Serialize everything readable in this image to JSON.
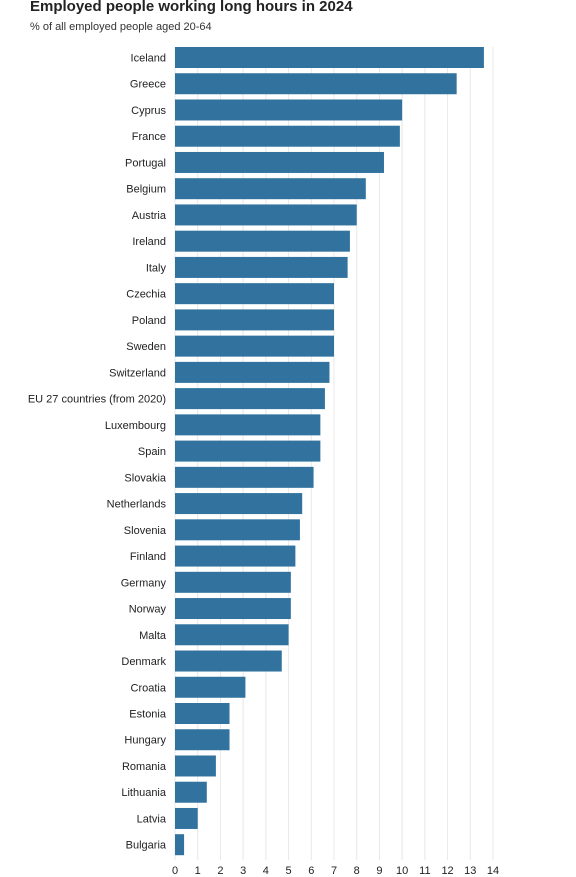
{
  "chart_data": {
    "type": "bar",
    "orientation": "horizontal",
    "title": "Employed people working long hours in 2024",
    "subtitle": "% of all employed people aged 20-64",
    "categories": [
      "Iceland",
      "Greece",
      "Cyprus",
      "France",
      "Portugal",
      "Belgium",
      "Austria",
      "Ireland",
      "Italy",
      "Czechia",
      "Poland",
      "Sweden",
      "Switzerland",
      "EU 27 countries (from 2020)",
      "Luxembourg",
      "Spain",
      "Slovakia",
      "Netherlands",
      "Slovenia",
      "Finland",
      "Germany",
      "Norway",
      "Malta",
      "Denmark",
      "Croatia",
      "Estonia",
      "Hungary",
      "Romania",
      "Lithuania",
      "Latvia",
      "Bulgaria"
    ],
    "values": [
      13.6,
      12.4,
      10.0,
      9.9,
      9.2,
      8.4,
      8.0,
      7.7,
      7.6,
      7.0,
      7.0,
      7.0,
      6.8,
      6.6,
      6.4,
      6.4,
      6.1,
      5.6,
      5.5,
      5.3,
      5.1,
      5.1,
      5.0,
      4.7,
      3.1,
      2.4,
      2.4,
      1.8,
      1.4,
      1.0,
      0.4
    ],
    "xlim": [
      0,
      14
    ],
    "xticks": [
      "0",
      "1",
      "2",
      "3",
      "4",
      "5",
      "6",
      "7",
      "8",
      "9",
      "10",
      "11",
      "12",
      "13",
      "14"
    ],
    "grid": true,
    "bar_color": "#31739e",
    "grid_color": "#e8e8e8"
  }
}
